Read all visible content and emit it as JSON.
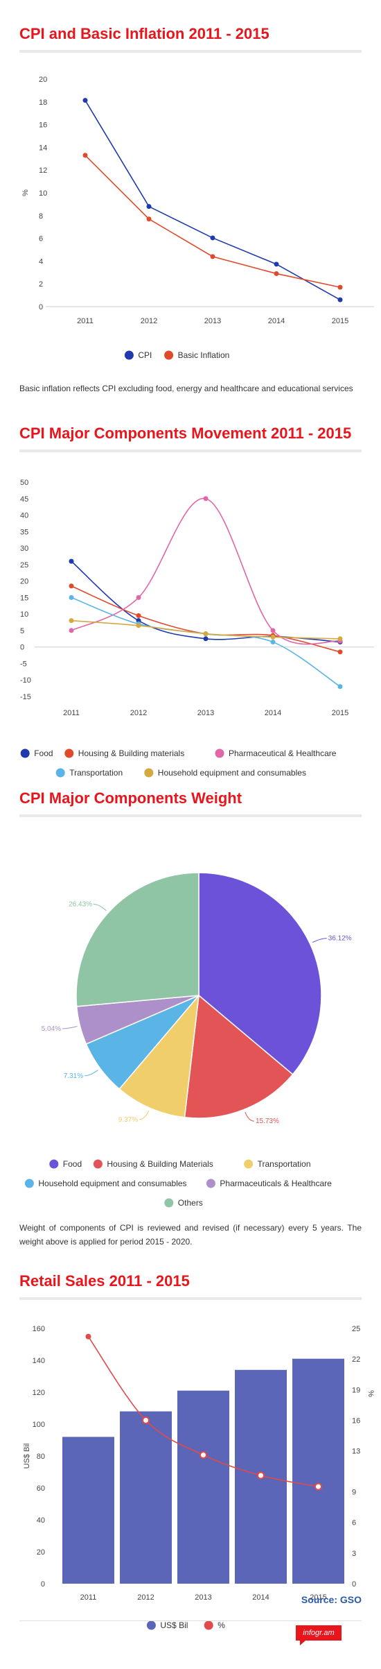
{
  "sections": {
    "cpi": {
      "title": "CPI and Basic Inflation 2011 - 2015",
      "note": "Basic inflation reflects CPI excluding food, energy and healthcare and educational services"
    },
    "components": {
      "title": "CPI Major Components Movement 2011 - 2015"
    },
    "weight": {
      "title": "CPI Major Components Weight",
      "note": "Weight of components of CPI is reviewed and revised (if necessary) every 5 years. The weight above is applied for period 2015 - 2020."
    },
    "retail": {
      "title": "Retail Sales 2011 - 2015"
    }
  },
  "source": "Source: GSO",
  "logo": "infogr.am",
  "chart_data": [
    {
      "type": "line",
      "title": "CPI and Basic Inflation 2011 - 2015",
      "ylabel": "%",
      "categories": [
        "2011",
        "2012",
        "2013",
        "2014",
        "2015"
      ],
      "y_ticks": [
        0,
        2,
        4,
        6,
        8,
        10,
        12,
        14,
        16,
        18,
        20
      ],
      "ylim": [
        0,
        20
      ],
      "grid": false,
      "legend": "bottom",
      "series": [
        {
          "name": "CPI",
          "color": "#1e3aad",
          "values": [
            18.13,
            8.8,
            6.04,
            3.73,
            0.6
          ]
        },
        {
          "name": "Basic Inflation",
          "color": "#e04a2b",
          "values": [
            13.3,
            7.7,
            4.4,
            2.9,
            1.7
          ]
        }
      ]
    },
    {
      "type": "line",
      "title": "CPI Major Components Movement 2011 - 2015",
      "categories": [
        "2011",
        "2012",
        "2013",
        "2014",
        "2015"
      ],
      "y_ticks": [
        -15,
        -10,
        -5,
        0,
        5,
        10,
        15,
        20,
        25,
        30,
        35,
        40,
        45,
        50
      ],
      "ylim": [
        -15,
        50
      ],
      "legend": "bottom",
      "series": [
        {
          "name": "Food",
          "color": "#1e3aad",
          "values": [
            26.0,
            8.0,
            2.5,
            3.2,
            1.5
          ]
        },
        {
          "name": "Housing & Building materials",
          "color": "#e04a2b",
          "values": [
            18.5,
            9.5,
            4.0,
            3.5,
            -1.5
          ]
        },
        {
          "name": "Pharmaceutical & Healthcare",
          "color": "#e066a8",
          "values": [
            5.0,
            15.0,
            45.0,
            5.0,
            1.8
          ]
        },
        {
          "name": "Transportation",
          "color": "#5ab4e6",
          "values": [
            15.0,
            7.0,
            4.0,
            1.5,
            -12.0
          ]
        },
        {
          "name": "Household equipment and consumables",
          "color": "#d4aa40",
          "values": [
            8.0,
            6.5,
            4.0,
            3.0,
            2.5
          ]
        }
      ]
    },
    {
      "type": "pie",
      "title": "CPI Major Components Weight",
      "legend": "bottom",
      "slices": [
        {
          "name": "Food",
          "value": 36.12,
          "label": "36.12%",
          "color": "#6b52d8"
        },
        {
          "name": "Housing & Building Materials",
          "value": 15.73,
          "label": "15.73%",
          "color": "#e25456"
        },
        {
          "name": "Transportation",
          "value": 9.37,
          "label": "9.37%",
          "color": "#f0ce6b"
        },
        {
          "name": "Household equipment and consumables",
          "value": 7.31,
          "label": "7.31%",
          "color": "#5ab4e6"
        },
        {
          "name": "Pharmaceuticals & Healthcare",
          "value": 5.04,
          "label": "5.04%",
          "color": "#ad90ca"
        },
        {
          "name": "Others",
          "value": 26.43,
          "label": "26.43%",
          "color": "#8fc4a4"
        }
      ]
    },
    {
      "type": "bar",
      "title": "Retail Sales 2011 - 2015",
      "ylabel": "US$ Bil",
      "y2label": "%",
      "categories": [
        "2011",
        "2012",
        "2013",
        "2014",
        "2015"
      ],
      "y_ticks": [
        0,
        20,
        40,
        60,
        80,
        100,
        120,
        140,
        160
      ],
      "ylim": [
        0,
        160
      ],
      "y2_ticks": [
        0,
        3,
        6,
        9,
        13,
        16,
        19,
        22,
        25
      ],
      "y2lim": [
        0,
        25
      ],
      "legend": "bottom",
      "series": [
        {
          "name": "US$ Bil",
          "type": "bar",
          "axis": "left",
          "color": "#5b66b8",
          "values": [
            92,
            108,
            121,
            134,
            141
          ]
        },
        {
          "name": "%",
          "type": "line",
          "axis": "right",
          "color": "#e04a4a",
          "values": [
            24.2,
            16.0,
            12.6,
            10.6,
            9.5
          ]
        }
      ]
    }
  ]
}
